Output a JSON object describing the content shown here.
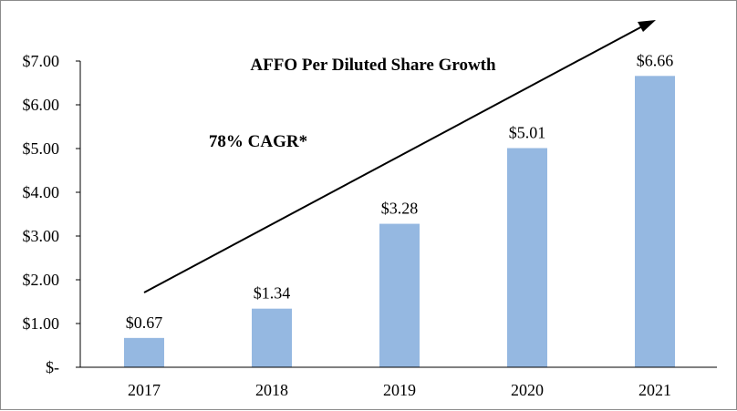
{
  "chart_data": {
    "type": "bar",
    "title": "AFFO Per Diluted Share Growth",
    "annotation": "78% CAGR*",
    "categories": [
      "2017",
      "2018",
      "2019",
      "2020",
      "2021"
    ],
    "values": [
      0.67,
      1.34,
      3.28,
      5.01,
      6.66
    ],
    "data_labels": [
      "$0.67",
      "$1.34",
      "$3.28",
      "$5.01",
      "$6.66"
    ],
    "y_ticks": [
      0,
      1,
      2,
      3,
      4,
      5,
      6,
      7
    ],
    "y_tick_labels": [
      "$-",
      "$1.00",
      "$2.00",
      "$3.00",
      "$4.00",
      "$5.00",
      "$6.00",
      "$7.00"
    ],
    "ylim": [
      0,
      7
    ],
    "xlabel": "",
    "ylabel": "",
    "grid": false,
    "bar_color": "#95b8e1",
    "trend_arrow": true
  }
}
